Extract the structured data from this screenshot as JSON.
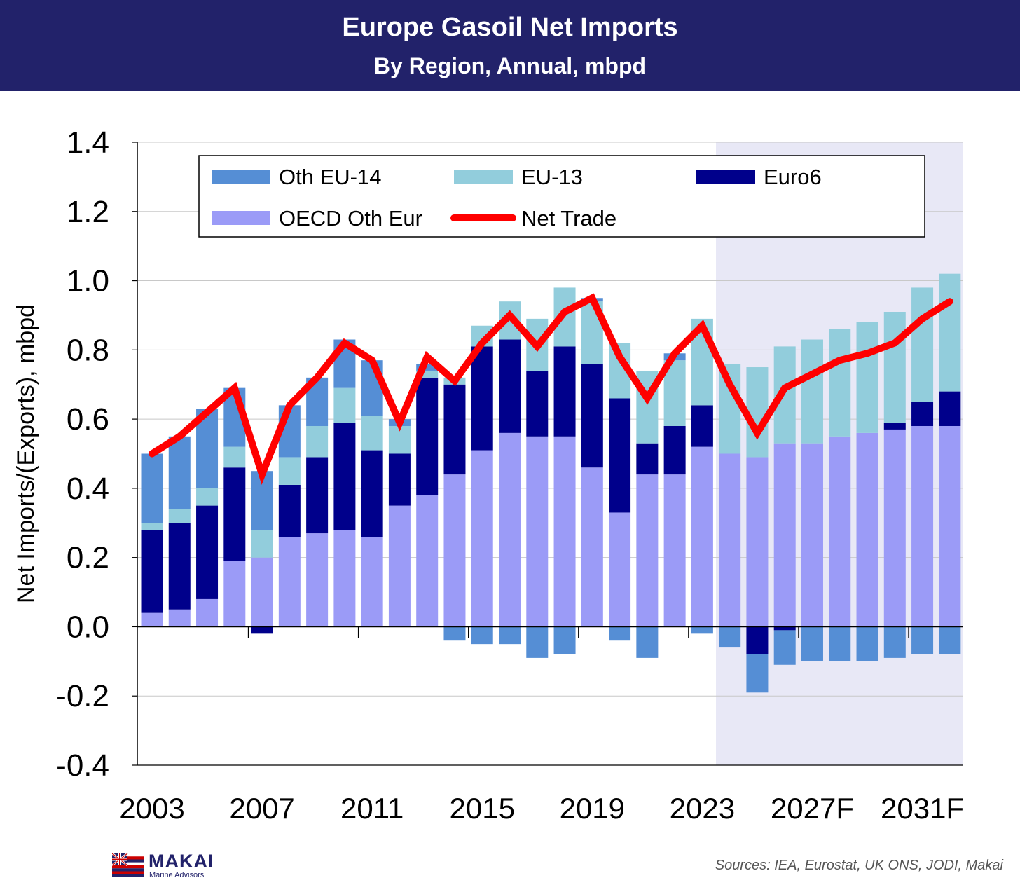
{
  "header": {
    "title": "Europe Gasoil Net Imports",
    "subtitle": "By Region, Annual, mbpd"
  },
  "footer": {
    "brand": "MAKAI",
    "brand_sub": "Marine Advisors",
    "sources": "Sources: IEA, Eurostat, UK ONS, JODI, Makai"
  },
  "colors": {
    "header_bg": "#22226a",
    "oecd_oth_eur": "#9b9bf7",
    "euro6": "#00008b",
    "eu13": "#92cddc",
    "oth_eu14": "#558ed5",
    "net_trade": "#ff0000",
    "forecast_shade": "#e8e8f6"
  },
  "chart_data": {
    "type": "bar",
    "stacked": true,
    "title": "",
    "ylabel": "Net Imports/(Exports), mbpd",
    "xlabel": "",
    "ylim": [
      -0.4,
      1.4
    ],
    "yticks": [
      "1.4",
      "1.2",
      "1.0",
      "0.8",
      "0.6",
      "0.4",
      "0.2",
      "0.0",
      "-0.2",
      "-0.4"
    ],
    "ytick_values": [
      1.4,
      1.2,
      1.0,
      0.8,
      0.6,
      0.4,
      0.2,
      0.0,
      -0.2,
      -0.4
    ],
    "grid": true,
    "legend_position": "top",
    "forecast_shaded_from": "2024",
    "categories": [
      "2003",
      "2004",
      "2005",
      "2006",
      "2007",
      "2008",
      "2009",
      "2010",
      "2011",
      "2012",
      "2013",
      "2014",
      "2015",
      "2016",
      "2017",
      "2018",
      "2019",
      "2020",
      "2021",
      "2022",
      "2023",
      "2024",
      "2025",
      "2026",
      "2027F",
      "2028F",
      "2029F",
      "2030F",
      "2031F",
      "2032F"
    ],
    "xtick_labels": [
      {
        "category": "2003",
        "label": "2003"
      },
      {
        "category": "2007",
        "label": "2007"
      },
      {
        "category": "2011",
        "label": "2011"
      },
      {
        "category": "2015",
        "label": "2015"
      },
      {
        "category": "2019",
        "label": "2019"
      },
      {
        "category": "2023",
        "label": "2023"
      },
      {
        "category": "2027F",
        "label": "2027F"
      },
      {
        "category": "2031F",
        "label": "2031F"
      }
    ],
    "series": [
      {
        "name": "OECD Oth Eur",
        "key": "oecd_oth_eur",
        "type": "bar",
        "values": [
          0.04,
          0.05,
          0.08,
          0.19,
          0.2,
          0.26,
          0.27,
          0.28,
          0.26,
          0.35,
          0.38,
          0.44,
          0.51,
          0.56,
          0.55,
          0.55,
          0.46,
          0.33,
          0.44,
          0.44,
          0.52,
          0.5,
          0.49,
          0.53,
          0.53,
          0.55,
          0.56,
          0.57,
          0.58,
          0.58
        ]
      },
      {
        "name": "Euro6",
        "key": "euro6",
        "type": "bar",
        "values": [
          0.24,
          0.25,
          0.27,
          0.27,
          -0.02,
          0.15,
          0.22,
          0.31,
          0.25,
          0.15,
          0.34,
          0.26,
          0.3,
          0.27,
          0.19,
          0.26,
          0.3,
          0.33,
          0.09,
          0.14,
          0.12,
          0.0,
          -0.08,
          -0.01,
          0.0,
          0.0,
          0.0,
          0.02,
          0.07,
          0.1
        ]
      },
      {
        "name": "EU-13",
        "key": "eu13",
        "type": "bar",
        "values": [
          0.02,
          0.04,
          0.05,
          0.06,
          0.08,
          0.08,
          0.09,
          0.1,
          0.1,
          0.08,
          0.02,
          0.02,
          0.06,
          0.11,
          0.15,
          0.17,
          0.18,
          0.16,
          0.21,
          0.19,
          0.25,
          0.26,
          0.26,
          0.28,
          0.3,
          0.31,
          0.32,
          0.32,
          0.33,
          0.34
        ]
      },
      {
        "name": "Oth EU-14",
        "key": "oth_eu14",
        "type": "bar",
        "values": [
          0.2,
          0.21,
          0.23,
          0.17,
          0.17,
          0.15,
          0.14,
          0.14,
          0.16,
          0.02,
          0.02,
          -0.04,
          -0.05,
          -0.05,
          -0.09,
          -0.08,
          0.01,
          -0.04,
          -0.09,
          0.02,
          -0.02,
          -0.06,
          -0.11,
          -0.1,
          -0.1,
          -0.1,
          -0.1,
          -0.09,
          -0.08,
          -0.08
        ]
      },
      {
        "name": "Net Trade",
        "key": "net_trade",
        "type": "line",
        "values": [
          0.5,
          0.55,
          0.62,
          0.69,
          0.44,
          0.64,
          0.72,
          0.82,
          0.77,
          0.59,
          0.78,
          0.71,
          0.82,
          0.9,
          0.81,
          0.91,
          0.95,
          0.78,
          0.66,
          0.79,
          0.87,
          0.7,
          0.56,
          0.69,
          0.73,
          0.77,
          0.79,
          0.82,
          0.89,
          0.94
        ]
      }
    ],
    "legend": [
      {
        "name": "Oth EU-14",
        "key": "oth_eu14",
        "marker": "box"
      },
      {
        "name": "EU-13",
        "key": "eu13",
        "marker": "box"
      },
      {
        "name": "Euro6",
        "key": "euro6",
        "marker": "box"
      },
      {
        "name": "OECD Oth Eur",
        "key": "oecd_oth_eur",
        "marker": "box"
      },
      {
        "name": "Net Trade",
        "key": "net_trade",
        "marker": "line"
      }
    ]
  }
}
